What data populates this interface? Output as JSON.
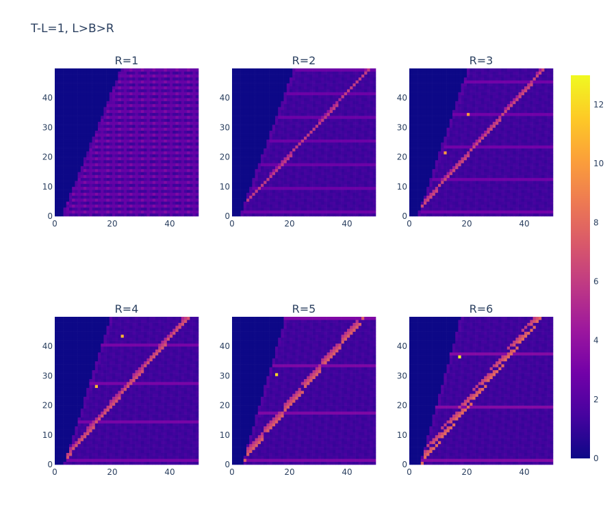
{
  "title": "T-L=1, L>B>R",
  "colorscale": [
    "#0d0887",
    "#46039f",
    "#7201a8",
    "#9c179e",
    "#bd3786",
    "#d8576b",
    "#ed7953",
    "#fb9f3a",
    "#fdca26",
    "#f0f921"
  ],
  "colorbar": {
    "min": 0,
    "max": 13,
    "ticks": [
      0,
      2,
      4,
      6,
      8,
      10,
      12
    ]
  },
  "chart_data": [
    {
      "type": "heatmap",
      "title": "R=1",
      "R": 1,
      "xlim": [
        0,
        49
      ],
      "ylim": [
        0,
        49
      ],
      "xticks": [
        0,
        20,
        40
      ],
      "yticks": [
        0,
        10,
        20,
        30,
        40
      ],
      "zmin": 0,
      "zmax": 13
    },
    {
      "type": "heatmap",
      "title": "R=2",
      "R": 2,
      "xlim": [
        0,
        49
      ],
      "ylim": [
        0,
        49
      ],
      "xticks": [
        0,
        20,
        40
      ],
      "yticks": [
        0,
        10,
        20,
        30,
        40
      ],
      "zmin": 0,
      "zmax": 13
    },
    {
      "type": "heatmap",
      "title": "R=3",
      "R": 3,
      "xlim": [
        0,
        49
      ],
      "ylim": [
        0,
        49
      ],
      "xticks": [
        0,
        20,
        40
      ],
      "yticks": [
        0,
        10,
        20,
        30,
        40
      ],
      "zmin": 0,
      "zmax": 13
    },
    {
      "type": "heatmap",
      "title": "R=4",
      "R": 4,
      "xlim": [
        0,
        49
      ],
      "ylim": [
        0,
        49
      ],
      "xticks": [
        0,
        20,
        40
      ],
      "yticks": [
        0,
        10,
        20,
        30,
        40
      ],
      "zmin": 0,
      "zmax": 13
    },
    {
      "type": "heatmap",
      "title": "R=5",
      "R": 5,
      "xlim": [
        0,
        49
      ],
      "ylim": [
        0,
        49
      ],
      "xticks": [
        0,
        20,
        40
      ],
      "yticks": [
        0,
        10,
        20,
        30,
        40
      ],
      "zmin": 0,
      "zmax": 13
    },
    {
      "type": "heatmap",
      "title": "R=6",
      "R": 6,
      "xlim": [
        0,
        49
      ],
      "ylim": [
        0,
        49
      ],
      "xticks": [
        0,
        20,
        40
      ],
      "yticks": [
        0,
        10,
        20,
        30,
        40
      ],
      "zmin": 0,
      "zmax": 13
    }
  ]
}
